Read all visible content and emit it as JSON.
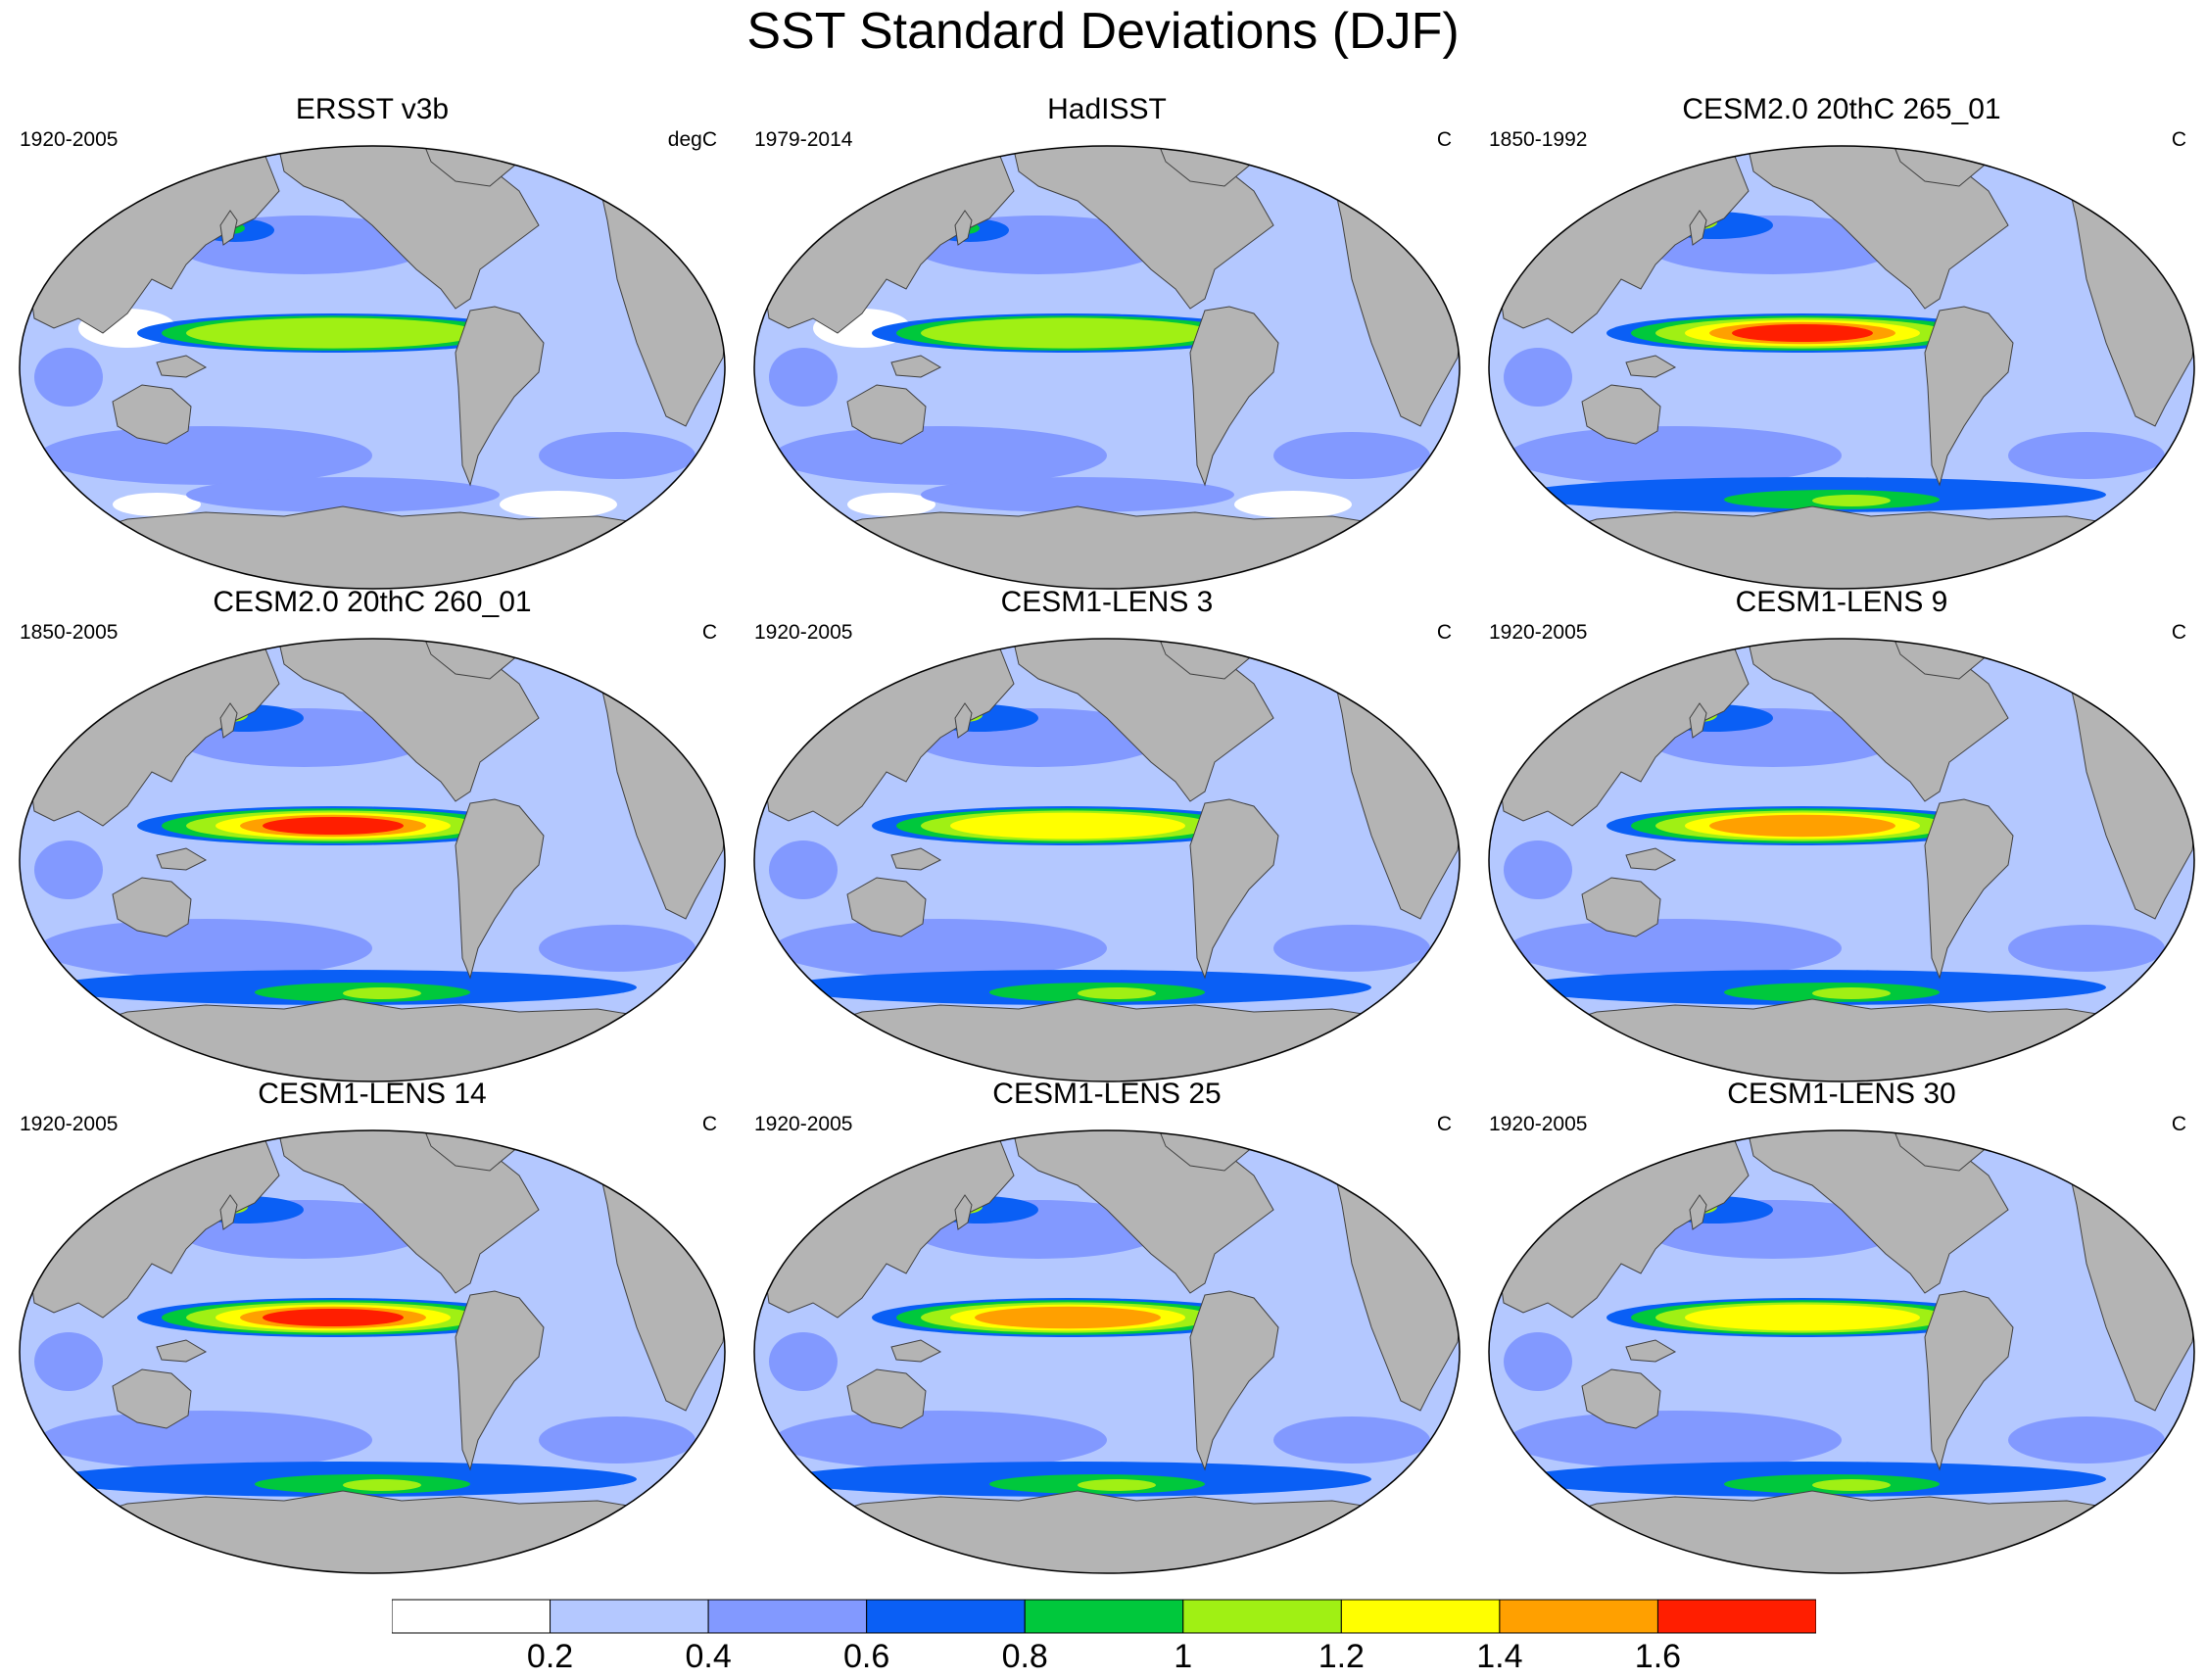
{
  "title": "SST Standard Deviations (DJF)",
  "panels": [
    {
      "name": "ERSST v3b",
      "period": "1920-2005",
      "units": "degC",
      "nino_peak_class": 5,
      "variant": "obs"
    },
    {
      "name": "HadISST",
      "period": "1979-2014",
      "units": "C",
      "nino_peak_class": 5,
      "variant": "obs"
    },
    {
      "name": "CESM2.0 20thC 265_01",
      "period": "1850-1992",
      "units": "C",
      "nino_peak_class": 8,
      "variant": "model"
    },
    {
      "name": "CESM2.0 20thC 260_01",
      "period": "1850-2005",
      "units": "C",
      "nino_peak_class": 8,
      "variant": "model"
    },
    {
      "name": "CESM1-LENS 3",
      "period": "1920-2005",
      "units": "C",
      "nino_peak_class": 6,
      "variant": "model"
    },
    {
      "name": "CESM1-LENS 9",
      "period": "1920-2005",
      "units": "C",
      "nino_peak_class": 7,
      "variant": "model"
    },
    {
      "name": "CESM1-LENS 14",
      "period": "1920-2005",
      "units": "C",
      "nino_peak_class": 8,
      "variant": "model"
    },
    {
      "name": "CESM1-LENS 25",
      "period": "1920-2005",
      "units": "C",
      "nino_peak_class": 7,
      "variant": "model"
    },
    {
      "name": "CESM1-LENS 30",
      "period": "1920-2005",
      "units": "C",
      "nino_peak_class": 6,
      "variant": "model"
    }
  ],
  "colorbar": {
    "labels": [
      "0.2",
      "0.4",
      "0.6",
      "0.8",
      "1",
      "1.2",
      "1.4",
      "1.6"
    ],
    "levels": [
      0.2,
      0.4,
      0.6,
      0.8,
      1.0,
      1.2,
      1.4,
      1.6
    ],
    "colors": [
      "#ffffff",
      "#b4c8ff",
      "#8299ff",
      "#0a5ff5",
      "#00c83c",
      "#a0f014",
      "#ffff00",
      "#ffa000",
      "#ff1e00"
    ]
  },
  "land_color": "#b4b4b4"
}
